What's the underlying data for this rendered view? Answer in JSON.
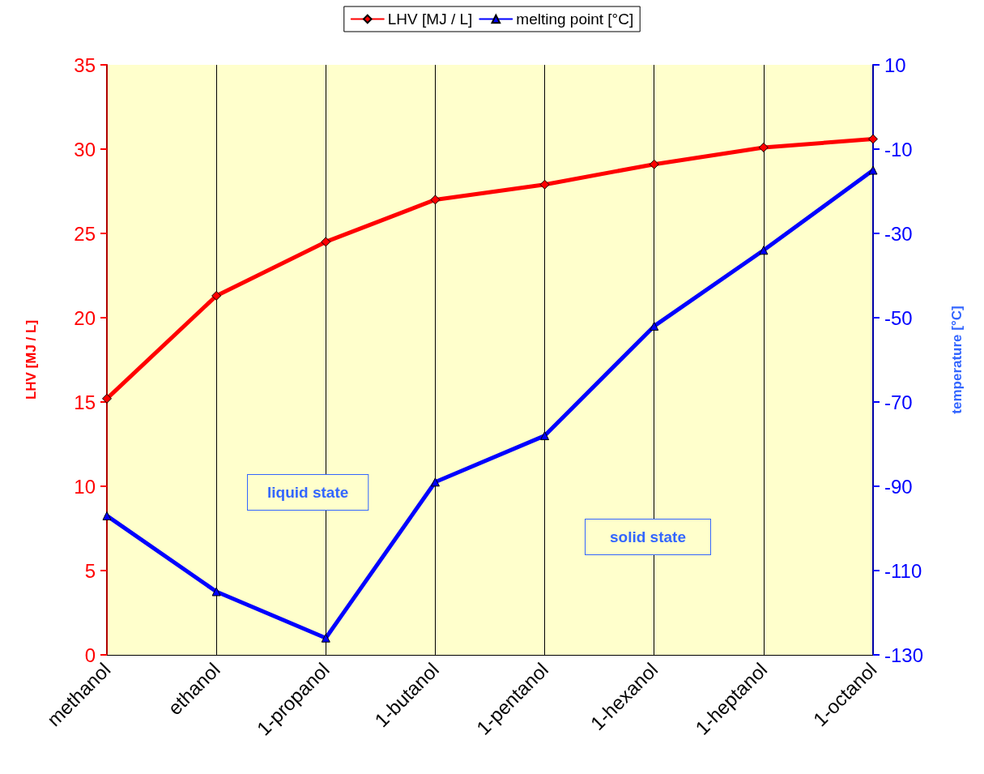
{
  "chart_data": {
    "type": "line",
    "categories": [
      "methanol",
      "ethanol",
      "1-propanol",
      "1-butanol",
      "1-pentanol",
      "1-hexanol",
      "1-heptanol",
      "1-octanol"
    ],
    "series": [
      {
        "name": "LHV [MJ / L]",
        "color": "#ff0000",
        "marker": "diamond",
        "values": [
          15.2,
          21.3,
          24.5,
          27.0,
          27.9,
          29.1,
          30.1,
          30.6
        ]
      },
      {
        "name": "melting point [°C]",
        "color": "#0000ff",
        "marker": "triangle",
        "axis": "y2",
        "values": [
          -97,
          -115,
          -126,
          -89,
          -78,
          -52,
          -34,
          -15
        ]
      }
    ],
    "ylabel": "LHV [MJ / L]",
    "y2label": "temperature [°C]",
    "ylim": [
      0,
      35
    ],
    "yticks": [
      0,
      5,
      10,
      15,
      20,
      25,
      30,
      35
    ],
    "y2lim": [
      -130,
      10
    ],
    "y2ticks": [
      -130,
      -110,
      -90,
      -70,
      -50,
      -30,
      -10,
      10
    ],
    "annotations": [
      "liquid state",
      "solid state"
    ],
    "grid": "x",
    "legend": "top",
    "line_style": "solid"
  }
}
